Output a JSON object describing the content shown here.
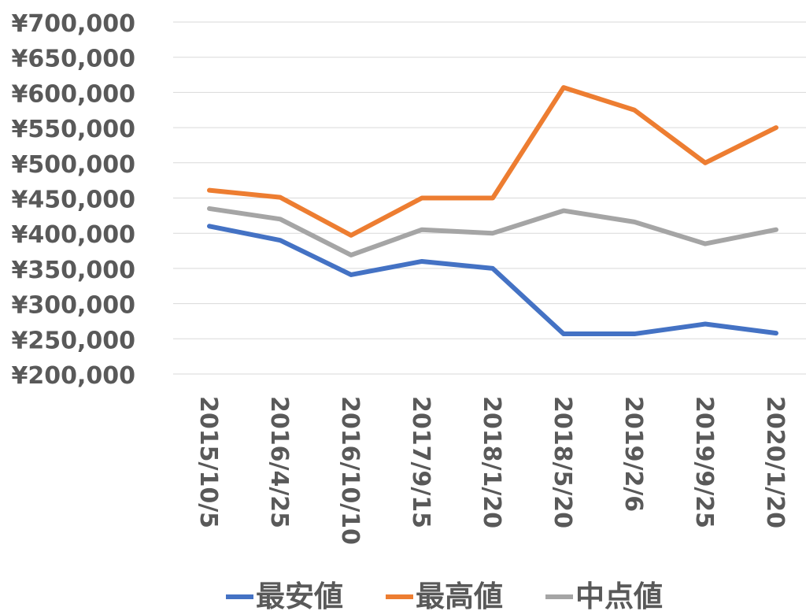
{
  "chart_data": {
    "type": "line",
    "categories": [
      "2015/10/5",
      "2016/4/25",
      "2016/10/10",
      "2017/9/15",
      "2018/1/20",
      "2018/5/20",
      "2019/2/6",
      "2019/9/25",
      "2020/1/20"
    ],
    "y_ticks": [
      "¥700,000",
      "¥650,000",
      "¥600,000",
      "¥550,000",
      "¥500,000",
      "¥450,000",
      "¥400,000",
      "¥350,000",
      "¥300,000",
      "¥250,000",
      "¥200,000"
    ],
    "ylim": [
      200000,
      700000
    ],
    "grid": true,
    "legend_position": "bottom",
    "series": [
      {
        "name": "最安値",
        "color": "#4472c4",
        "values": [
          410000,
          390000,
          341000,
          360000,
          350000,
          257000,
          257000,
          271000,
          258000
        ]
      },
      {
        "name": "最高値",
        "color": "#ed7d31",
        "values": [
          461000,
          451000,
          397000,
          450000,
          450000,
          607000,
          575000,
          500000,
          550000
        ]
      },
      {
        "name": "中点値",
        "color": "#a5a5a5",
        "values": [
          435000,
          420000,
          369000,
          405000,
          400000,
          432000,
          416000,
          385000,
          405000
        ]
      }
    ]
  }
}
